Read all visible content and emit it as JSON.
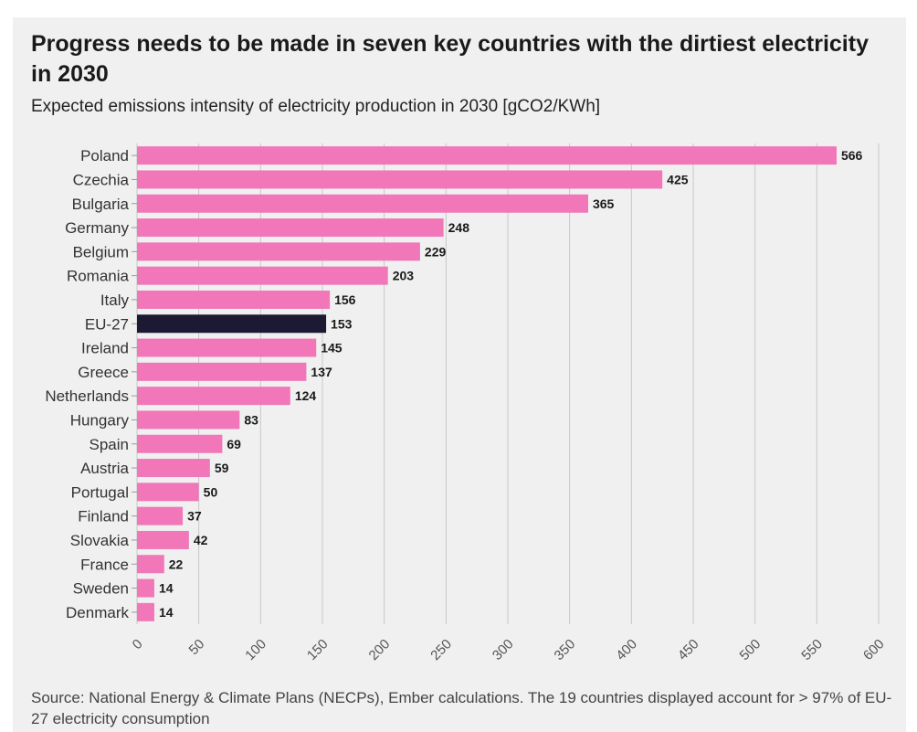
{
  "title": "Progress needs to be made in seven key countries with the dirtiest electricity in 2030",
  "subtitle": "Expected emissions intensity of electricity production in 2030 [gCO2/KWh]",
  "source": "Source: National Energy & Climate Plans (NECPs), Ember calculations. The 19 countries displayed account for > 97% of EU-27 electricity consumption",
  "colors": {
    "bar": "#f177b9",
    "highlight": "#1c1a33",
    "grid": "#c8c8c8",
    "background": "#f0f0f0"
  },
  "chart_data": {
    "type": "bar",
    "orientation": "horizontal",
    "title": "Progress needs to be made in seven key countries with the dirtiest electricity in 2030",
    "subtitle": "Expected emissions intensity of electricity production in 2030 [gCO2/KWh]",
    "categories": [
      "Poland",
      "Czechia",
      "Bulgaria",
      "Germany",
      "Belgium",
      "Romania",
      "Italy",
      "EU-27",
      "Ireland",
      "Greece",
      "Netherlands",
      "Hungary",
      "Spain",
      "Austria",
      "Portugal",
      "Finland",
      "Slovakia",
      "France",
      "Sweden",
      "Denmark"
    ],
    "values": [
      566,
      425,
      365,
      248,
      229,
      203,
      156,
      153,
      145,
      137,
      124,
      83,
      69,
      59,
      50,
      37,
      42,
      22,
      14,
      14
    ],
    "highlighted_category": "EU-27",
    "xlim": [
      0,
      600
    ],
    "xticks": [
      "0",
      "50",
      "100",
      "150",
      "200",
      "250",
      "300",
      "350",
      "400",
      "450",
      "500",
      "550",
      "600"
    ],
    "grid": true,
    "data_labels": true
  }
}
